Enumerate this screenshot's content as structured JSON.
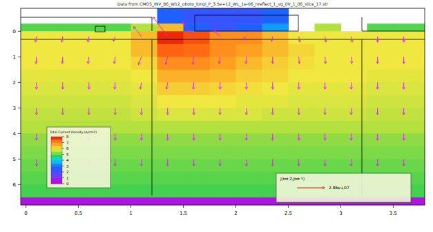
{
  "chart_data": {
    "type": "heatmap",
    "title": "Data from CMOS_INV_B6_W12_oboto_longl_P_3.5e+12_WL_1e-06_nreflect_1_vg_0V_1_06_slice_17.str",
    "xlim": [
      -0.05,
      3.8
    ],
    "ylim": [
      -0.9,
      6.8
    ],
    "xticks": [
      0,
      0.5,
      1,
      1.5,
      2,
      2.5,
      3,
      3.5
    ],
    "yticks": [
      0,
      1,
      2,
      3,
      4,
      5,
      6
    ],
    "grid": false,
    "x_edges": [
      -0.05,
      0.25,
      0.5,
      0.75,
      1,
      1.25,
      1.5,
      1.75,
      2,
      2.25,
      2.5,
      2.75,
      3,
      3.25,
      3.5,
      3.8
    ],
    "y_edges": [
      -0.9,
      -0.3,
      0,
      0.5,
      1,
      1.5,
      2,
      2.5,
      3,
      3.5,
      4,
      4.5,
      5,
      5.5,
      6,
      6.5,
      6.8
    ],
    "cells": [
      [
        null,
        null,
        null,
        null,
        null,
        3,
        2.5,
        2.5,
        2.5,
        3,
        null,
        null,
        null,
        null,
        null
      ],
      [
        5,
        5,
        5,
        5,
        5.5,
        6.5,
        3,
        2.5,
        3,
        3.5,
        null,
        5.5,
        null,
        5,
        5
      ],
      [
        6,
        6,
        6,
        6,
        6.5,
        7.8,
        7.6,
        7,
        7,
        6.5,
        6,
        6,
        6,
        6,
        6
      ],
      [
        6,
        6,
        6,
        6,
        6.5,
        7.5,
        7.4,
        7,
        6.8,
        6.5,
        6.2,
        6,
        6,
        6,
        6
      ],
      [
        6,
        6,
        6,
        6,
        6.2,
        7,
        7,
        6.8,
        6.5,
        6.3,
        6.1,
        6,
        6,
        6,
        6
      ],
      [
        5.9,
        5.9,
        5.9,
        5.9,
        6,
        6.6,
        6.6,
        6.5,
        6.3,
        6.2,
        6,
        6,
        6,
        5.9,
        5.9
      ],
      [
        5.8,
        5.8,
        5.8,
        5.8,
        5.9,
        6.3,
        6.3,
        6.2,
        6.1,
        6,
        5.9,
        5.9,
        5.9,
        5.8,
        5.8
      ],
      [
        5.7,
        5.7,
        5.7,
        5.7,
        5.8,
        6,
        6,
        6,
        5.9,
        5.9,
        5.8,
        5.8,
        5.8,
        5.7,
        5.7
      ],
      [
        5.6,
        5.6,
        5.6,
        5.6,
        5.7,
        5.8,
        5.8,
        5.8,
        5.8,
        5.7,
        5.7,
        5.7,
        5.7,
        5.6,
        5.6
      ],
      [
        5.5,
        5.5,
        5.5,
        5.5,
        5.5,
        5.5,
        5.5,
        5.5,
        5.5,
        5.5,
        5.5,
        5.5,
        5.5,
        5.5,
        5.5
      ],
      [
        5.3,
        5.3,
        5.3,
        5.3,
        5.3,
        5.3,
        5.3,
        5.3,
        5.3,
        5.3,
        5.3,
        5.3,
        5.3,
        5.3,
        5.3
      ],
      [
        5.2,
        5.2,
        5.2,
        5.2,
        5.2,
        5.2,
        5.2,
        5.2,
        5.2,
        5.2,
        5.2,
        5.2,
        5.2,
        5.2,
        5.2
      ],
      [
        5.1,
        5.1,
        5.1,
        5.1,
        5.1,
        5.1,
        5.1,
        5.1,
        5.1,
        5.1,
        5.1,
        5.1,
        5.1,
        5.1,
        5.1
      ],
      [
        5,
        5,
        5,
        5,
        5,
        5,
        5,
        5,
        5,
        5,
        5,
        5,
        5,
        5,
        5
      ],
      [
        4.9,
        4.9,
        4.9,
        4.9,
        4.9,
        4.9,
        4.9,
        4.9,
        4.9,
        4.9,
        4.9,
        4.9,
        4.9,
        4.9,
        4.9
      ],
      [
        0.5,
        0.5,
        0.5,
        0.5,
        0.5,
        0.5,
        0.5,
        0.5,
        0.5,
        0.5,
        0.5,
        0.5,
        0.5,
        0.5,
        0.5
      ]
    ],
    "colorbar": {
      "title": "Total Current Density (A/cm2)",
      "range": [
        0,
        8
      ],
      "ticks": [
        0,
        1,
        2,
        3,
        4,
        5,
        6,
        7,
        8
      ]
    },
    "vectors": {
      "title": "J(tot Z,Jtot Y)",
      "x": [
        0.1,
        0.35,
        0.6,
        0.85,
        1.1,
        1.35,
        1.6,
        1.85,
        2.1,
        2.35,
        2.6,
        2.85,
        3.1,
        3.35,
        3.6
      ],
      "y": [
        0.2,
        1,
        2,
        3,
        4,
        5
      ],
      "u": [
        [
          -1000000.0,
          -1000000.0,
          -1000000.0,
          -2000000.0,
          -8000000.0,
          -15000000.0,
          -12000000.0,
          -6000000.0,
          -3000000.0,
          -1000000.0,
          1000000.0,
          1000000.0,
          1000000.0,
          0,
          0
        ],
        [
          -500000.0,
          -500000.0,
          -1000000.0,
          -1000000.0,
          -3000000.0,
          -2000000.0,
          -1000000.0,
          -1000000.0,
          -500000.0,
          0,
          500000.0,
          500000.0,
          500000.0,
          0,
          0
        ],
        [
          0,
          0,
          0,
          -500000.0,
          -1000000.0,
          -1000000.0,
          -500000.0,
          0,
          0,
          0,
          0,
          0,
          0,
          0,
          0
        ],
        [
          0,
          0,
          0,
          0,
          0,
          0,
          0,
          0,
          0,
          0,
          0,
          0,
          0,
          0,
          0
        ],
        [
          0,
          0,
          0,
          0,
          0,
          0,
          0,
          0,
          0,
          0,
          0,
          0,
          0,
          0,
          0
        ],
        [
          0,
          0,
          0,
          0,
          0,
          0,
          0,
          0,
          0,
          0,
          0,
          0,
          0,
          0,
          0
        ]
      ],
      "v": [
        [
          6000000.0,
          6000000.0,
          6000000.0,
          5000000.0,
          -10000000.0,
          -20000000.0,
          -15000000.0,
          -6000000.0,
          3000000.0,
          5000000.0,
          6000000.0,
          6000000.0,
          6000000.0,
          6000000.0,
          6000000.0
        ],
        [
          7000000.0,
          7000000.0,
          7000000.0,
          7000000.0,
          8000000.0,
          8000000.0,
          8000000.0,
          7000000.0,
          7000000.0,
          7000000.0,
          7000000.0,
          7000000.0,
          7000000.0,
          7000000.0,
          7000000.0
        ],
        [
          7000000.0,
          7000000.0,
          7000000.0,
          7000000.0,
          7000000.0,
          7000000.0,
          7000000.0,
          7000000.0,
          7000000.0,
          7000000.0,
          7000000.0,
          7000000.0,
          7000000.0,
          7000000.0,
          7000000.0
        ],
        [
          7000000.0,
          7000000.0,
          7000000.0,
          7000000.0,
          7000000.0,
          7000000.0,
          7000000.0,
          7000000.0,
          7000000.0,
          7000000.0,
          7000000.0,
          7000000.0,
          7000000.0,
          7000000.0,
          7000000.0
        ],
        [
          7000000.0,
          7000000.0,
          7000000.0,
          7000000.0,
          7000000.0,
          7000000.0,
          7000000.0,
          7000000.0,
          7000000.0,
          7000000.0,
          7000000.0,
          7000000.0,
          7000000.0,
          7000000.0,
          7000000.0
        ],
        [
          7000000.0,
          7000000.0,
          7000000.0,
          7000000.0,
          7000000.0,
          7000000.0,
          7000000.0,
          7000000.0,
          7000000.0,
          7000000.0,
          7000000.0,
          7000000.0,
          7000000.0,
          7000000.0,
          7000000.0
        ]
      ],
      "reference": {
        "value": 28600000,
        "label": "2.86e+07"
      }
    }
  }
}
